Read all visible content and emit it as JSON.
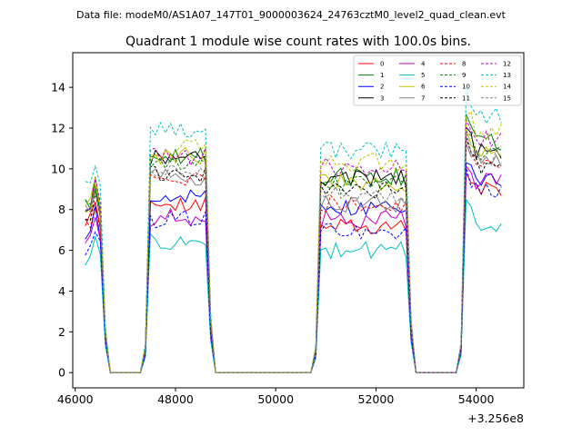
{
  "chart_data": {
    "type": "line",
    "suptitle": "Data file: modeM0/AS1A07_147T01_9000003624_24763cztM0_level2_quad_clean.evt",
    "title": "Quadrant 1 module wise count rates with 100.0s bins.",
    "xlabel": "",
    "ylabel": "",
    "x_offset_label": "+3.256e8",
    "xlim": [
      45950,
      54950
    ],
    "ylim": [
      -0.75,
      15.7
    ],
    "xticks": [
      46000,
      48000,
      50000,
      52000,
      54000
    ],
    "xtick_labels": [
      "46000",
      "48000",
      "50000",
      "52000",
      "54000"
    ],
    "yticks": [
      0,
      2,
      4,
      6,
      8,
      10,
      12,
      14
    ],
    "ytick_labels": [
      "0",
      "2",
      "4",
      "6",
      "8",
      "10",
      "12",
      "14"
    ],
    "legend_position": "top-right",
    "segments": [
      {
        "start": 46200,
        "end": 46500
      },
      {
        "start": 47450,
        "end": 48600
      },
      {
        "start": 50850,
        "end": 52650
      },
      {
        "start": 53750,
        "end": 54500
      }
    ],
    "zero_periods": [
      {
        "start": 46600,
        "end": 47400
      },
      {
        "start": 48800,
        "end": 50800
      },
      {
        "start": 52800,
        "end": 53600
      }
    ],
    "series": [
      {
        "name": "0",
        "color": "#ff0000",
        "dashed": false,
        "levels": [
          7.4,
          8.2,
          7.2,
          9.0
        ]
      },
      {
        "name": "1",
        "color": "#008000",
        "dashed": false,
        "levels": [
          8.3,
          10.6,
          9.6,
          11.3
        ]
      },
      {
        "name": "2",
        "color": "#0000ff",
        "dashed": false,
        "levels": [
          6.6,
          8.6,
          8.0,
          9.6
        ]
      },
      {
        "name": "3",
        "color": "#000000",
        "dashed": false,
        "levels": [
          8.1,
          10.5,
          9.5,
          10.8
        ]
      },
      {
        "name": "4",
        "color": "#bf00bf",
        "dashed": false,
        "levels": [
          6.3,
          7.6,
          7.5,
          9.4
        ]
      },
      {
        "name": "5",
        "color": "#00bfbf",
        "dashed": false,
        "levels": [
          5.4,
          6.4,
          6.0,
          7.3
        ]
      },
      {
        "name": "6",
        "color": "#bfbf00",
        "dashed": false,
        "levels": [
          8.4,
          10.6,
          9.3,
          11.0
        ]
      },
      {
        "name": "7",
        "color": "#808080",
        "dashed": false,
        "levels": [
          8.0,
          9.6,
          8.3,
          10.4
        ]
      },
      {
        "name": "8",
        "color": "#ff0000",
        "dashed": true,
        "levels": [
          7.2,
          9.6,
          8.3,
          10.2
        ]
      },
      {
        "name": "9",
        "color": "#008000",
        "dashed": true,
        "levels": [
          8.0,
          10.3,
          9.2,
          10.9
        ]
      },
      {
        "name": "10",
        "color": "#0000ff",
        "dashed": true,
        "levels": [
          6.2,
          7.5,
          6.9,
          8.9
        ]
      },
      {
        "name": "11",
        "color": "#000000",
        "dashed": true,
        "levels": [
          7.9,
          9.8,
          9.0,
          10.1
        ]
      },
      {
        "name": "12",
        "color": "#bf00bf",
        "dashed": true,
        "levels": [
          8.0,
          10.6,
          10.1,
          11.5
        ]
      },
      {
        "name": "13",
        "color": "#00bfbf",
        "dashed": true,
        "levels": [
          9.1,
          11.9,
          10.9,
          12.6
        ]
      },
      {
        "name": "14",
        "color": "#bfbf00",
        "dashed": true,
        "levels": [
          8.3,
          11.0,
          10.3,
          11.8
        ]
      },
      {
        "name": "15",
        "color": "#808080",
        "dashed": true,
        "levels": [
          7.8,
          9.8,
          8.8,
          10.5
        ]
      }
    ]
  }
}
